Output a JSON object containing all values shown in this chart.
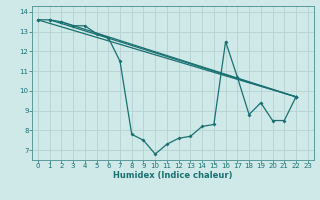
{
  "xlabel": "Humidex (Indice chaleur)",
  "background_color": "#cfe9e9",
  "grid_color": "#b8d4d4",
  "line_color": "#1a7070",
  "spine_color": "#5a9a9a",
  "xlim": [
    -0.5,
    23.5
  ],
  "ylim": [
    6.5,
    14.3
  ],
  "yticks": [
    7,
    8,
    9,
    10,
    11,
    12,
    13,
    14
  ],
  "xticks": [
    0,
    1,
    2,
    3,
    4,
    5,
    6,
    7,
    8,
    9,
    10,
    11,
    12,
    13,
    14,
    15,
    16,
    17,
    18,
    19,
    20,
    21,
    22,
    23
  ],
  "series": [
    [
      0,
      13.6
    ],
    [
      1,
      13.6
    ],
    [
      2,
      13.5
    ],
    [
      3,
      13.3
    ],
    [
      4,
      13.3
    ],
    [
      5,
      12.9
    ],
    [
      6,
      12.7
    ],
    [
      7,
      11.5
    ],
    [
      8,
      7.8
    ],
    [
      9,
      7.5
    ],
    [
      10,
      6.8
    ],
    [
      11,
      7.3
    ],
    [
      12,
      7.6
    ],
    [
      13,
      7.7
    ],
    [
      14,
      8.2
    ],
    [
      15,
      8.3
    ],
    [
      16,
      12.5
    ],
    [
      17,
      10.7
    ],
    [
      18,
      8.8
    ],
    [
      19,
      9.4
    ],
    [
      20,
      8.5
    ],
    [
      21,
      8.5
    ],
    [
      22,
      9.7
    ]
  ],
  "line2": [
    [
      0,
      13.6
    ],
    [
      22,
      9.7
    ]
  ],
  "line3": [
    [
      1,
      13.6
    ],
    [
      22,
      9.7
    ]
  ],
  "line4": [
    [
      2,
      13.5
    ],
    [
      22,
      9.7
    ]
  ]
}
